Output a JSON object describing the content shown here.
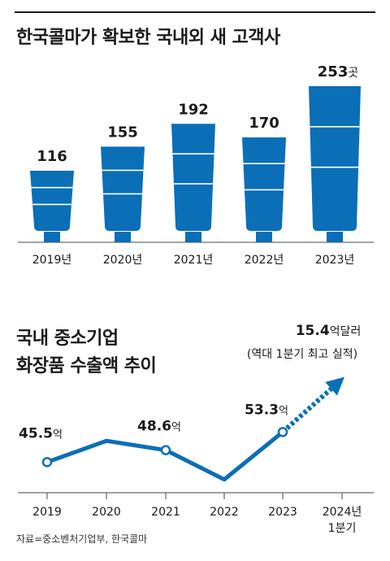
{
  "title1": "한국콜마가 확보한 국내외 새 고객사",
  "title2_line1": "국내 중소기업",
  "title2_line2": "화장품 수출액 추이",
  "source": "자료=중소벤처기업부, 한국콜마",
  "colors": {
    "accent": "#0a6fb7",
    "text": "#1a1a1a",
    "axis": "#555555"
  },
  "chart_data": [
    {
      "type": "bar",
      "title": "한국콜마가 확보한 국내외 새 고객사",
      "categories": [
        "2019년",
        "2020년",
        "2021년",
        "2022년",
        "2023년"
      ],
      "values": [
        116,
        155,
        192,
        170,
        253
      ],
      "value_labels": [
        "116",
        "155",
        "192",
        "170",
        "253"
      ],
      "unit": "곳",
      "ylim": [
        0,
        253
      ]
    },
    {
      "type": "line",
      "title": "국내 중소기업 화장품 수출액 추이",
      "categories": [
        "2019",
        "2020",
        "2021",
        "2022",
        "2023",
        "2024년 1분기"
      ],
      "values": [
        45.5,
        51.0,
        48.6,
        41.0,
        53.3,
        67.0
      ],
      "labels": [
        {
          "index": 0,
          "value": "45.5",
          "unit": "억"
        },
        {
          "index": 2,
          "value": "48.6",
          "unit": "억"
        },
        {
          "index": 4,
          "value": "53.3",
          "unit": "억"
        }
      ],
      "annotation": {
        "value": "15.4",
        "unit": "억달러",
        "note": "(역대 1분기 최고 실적)"
      },
      "projected_segment": "2023 to 2024년 1분기 (dotted arrow)"
    }
  ]
}
